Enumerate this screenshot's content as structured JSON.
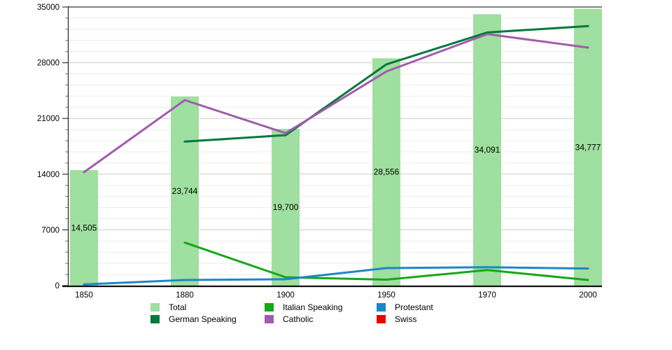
{
  "chart_data": {
    "type": "bar+line",
    "title": "",
    "xlabel": "",
    "ylabel": "",
    "categories": [
      "1850",
      "1880",
      "1900",
      "1950",
      "1970",
      "2000"
    ],
    "bars": {
      "name": "Total",
      "color": "#9fdf9f",
      "values": [
        14505,
        23744,
        19700,
        28556,
        34091,
        34777
      ],
      "value_labels": [
        "14,505",
        "23,744",
        "19,700",
        "28,556",
        "34,091",
        "34,777"
      ]
    },
    "series": [
      {
        "name": "German Speaking",
        "color": "#00783f",
        "values": [
          null,
          18100,
          18900,
          27800,
          31800,
          32600
        ]
      },
      {
        "name": "Italian Speaking",
        "color": "#16a816",
        "values": [
          null,
          5400,
          1050,
          750,
          1950,
          700
        ]
      },
      {
        "name": "Catholic",
        "color": "#a25aae",
        "values": [
          14250,
          23300,
          19150,
          26900,
          31600,
          29900
        ]
      },
      {
        "name": "Protestant",
        "color": "#1c87c8",
        "values": [
          150,
          700,
          800,
          2200,
          2300,
          2150
        ]
      },
      {
        "name": "Swiss",
        "color": "#ee0000",
        "values": [
          null,
          null,
          null,
          null,
          null,
          null
        ]
      }
    ],
    "ylim": [
      0,
      35000
    ],
    "yticks": [
      0,
      7000,
      14000,
      21000,
      28000,
      35000
    ],
    "minor_grid_step": 1400,
    "grid": "on",
    "legend_position": "bottom"
  },
  "legend": {
    "items": [
      {
        "label": "Total",
        "color": "#9fdf9f"
      },
      {
        "label": "German Speaking",
        "color": "#00783f"
      },
      {
        "label": "Italian Speaking",
        "color": "#16a816"
      },
      {
        "label": "Catholic",
        "color": "#a25aae"
      },
      {
        "label": "Protestant",
        "color": "#1c87c8"
      },
      {
        "label": "Swiss",
        "color": "#ee0000"
      }
    ]
  }
}
